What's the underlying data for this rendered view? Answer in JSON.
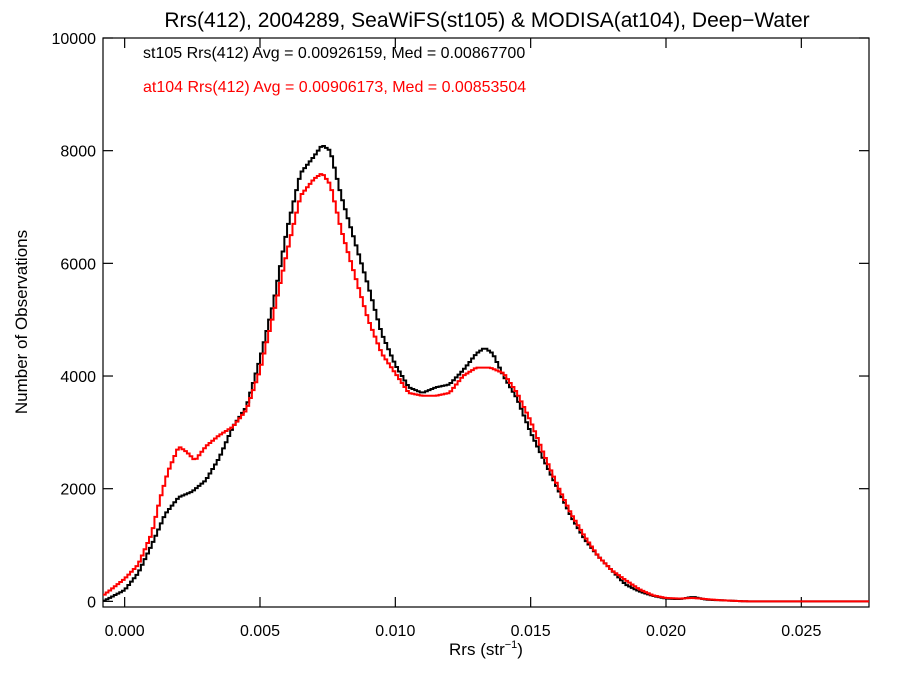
{
  "chart_data": {
    "type": "line",
    "title": "Rrs(412), 2004289, SeaWiFS(st105) & MODISA(at104), Deep−Water",
    "xlabel_main": "Rrs (str",
    "xlabel_sup": "−1",
    "xlabel_close": ")",
    "ylabel": "Number of Observations",
    "xlim": [
      -0.0008,
      0.0275
    ],
    "ylim": [
      -100,
      10000
    ],
    "xticks": [
      {
        "value": 0.0,
        "label": "0.000"
      },
      {
        "value": 0.005,
        "label": "0.005"
      },
      {
        "value": 0.01,
        "label": "0.010"
      },
      {
        "value": 0.015,
        "label": "0.015"
      },
      {
        "value": 0.02,
        "label": "0.020"
      },
      {
        "value": 0.025,
        "label": "0.025"
      }
    ],
    "yticks": [
      {
        "value": 0,
        "label": "0"
      },
      {
        "value": 2000,
        "label": "2000"
      },
      {
        "value": 4000,
        "label": "4000"
      },
      {
        "value": 6000,
        "label": "6000"
      },
      {
        "value": 8000,
        "label": "8000"
      },
      {
        "value": 10000,
        "label": "10000"
      }
    ],
    "annotations": [
      {
        "text": "st105 Rrs(412) Avg = 0.00926159, Med = 0.00867700",
        "color": "#000000"
      },
      {
        "text": "at104 Rrs(412) Avg = 0.00906173, Med = 0.00853504",
        "color": "#ff0000"
      }
    ],
    "series": [
      {
        "color": "#000000",
        "x": [
          -0.0008,
          -0.0004,
          0.0,
          0.0005,
          0.001,
          0.0015,
          0.002,
          0.0025,
          0.003,
          0.0035,
          0.004,
          0.0045,
          0.005,
          0.0055,
          0.006,
          0.0065,
          0.007,
          0.0073,
          0.0076,
          0.008,
          0.0085,
          0.009,
          0.0095,
          0.01,
          0.0105,
          0.011,
          0.0115,
          0.012,
          0.0125,
          0.013,
          0.0133,
          0.0136,
          0.014,
          0.0145,
          0.015,
          0.0155,
          0.016,
          0.0165,
          0.017,
          0.0175,
          0.018,
          0.0185,
          0.019,
          0.0195,
          0.02,
          0.0205,
          0.021,
          0.0215,
          0.022,
          0.0225,
          0.023,
          0.024,
          0.025,
          0.026,
          0.0275
        ],
        "y": [
          0,
          100,
          200,
          500,
          1000,
          1550,
          1850,
          1950,
          2150,
          2550,
          3100,
          3450,
          4300,
          5300,
          6600,
          7600,
          7900,
          8100,
          8000,
          7200,
          6400,
          5600,
          4750,
          4200,
          3800,
          3700,
          3800,
          3850,
          4100,
          4400,
          4500,
          4400,
          4000,
          3600,
          3000,
          2500,
          2000,
          1500,
          1100,
          800,
          550,
          300,
          180,
          100,
          50,
          40,
          80,
          30,
          20,
          10,
          0,
          0,
          0,
          0,
          0
        ]
      },
      {
        "color": "#ff0000",
        "x": [
          -0.0008,
          -0.0004,
          0.0,
          0.0005,
          0.001,
          0.0013,
          0.0016,
          0.002,
          0.0023,
          0.0026,
          0.003,
          0.0035,
          0.004,
          0.0045,
          0.005,
          0.0055,
          0.006,
          0.0065,
          0.007,
          0.0073,
          0.0076,
          0.008,
          0.0085,
          0.009,
          0.0095,
          0.01,
          0.0105,
          0.011,
          0.0115,
          0.012,
          0.0125,
          0.013,
          0.0135,
          0.014,
          0.0145,
          0.015,
          0.0155,
          0.016,
          0.0165,
          0.017,
          0.0175,
          0.018,
          0.0185,
          0.019,
          0.0195,
          0.02,
          0.0205,
          0.021,
          0.0215,
          0.022,
          0.0225,
          0.023,
          0.024,
          0.025,
          0.026,
          0.0275
        ],
        "y": [
          100,
          250,
          400,
          650,
          1200,
          1800,
          2300,
          2750,
          2650,
          2500,
          2750,
          2950,
          3100,
          3400,
          4100,
          5100,
          6200,
          7200,
          7500,
          7600,
          7400,
          6600,
          5800,
          5000,
          4400,
          4050,
          3700,
          3650,
          3650,
          3700,
          4000,
          4150,
          4150,
          4050,
          3700,
          3200,
          2600,
          2050,
          1550,
          1150,
          800,
          550,
          380,
          220,
          110,
          60,
          50,
          60,
          40,
          20,
          10,
          0,
          0,
          0,
          0,
          0
        ]
      }
    ]
  }
}
